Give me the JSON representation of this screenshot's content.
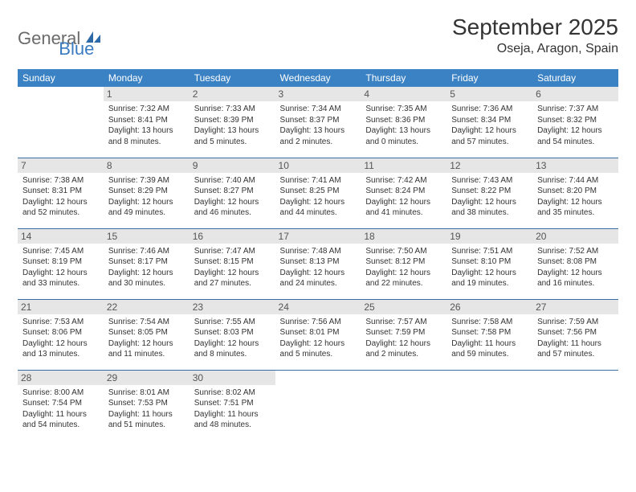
{
  "logo": {
    "text1": "General",
    "text2": "Blue"
  },
  "title": "September 2025",
  "location": "Oseja, Aragon, Spain",
  "colors": {
    "header_bg": "#3b82c4",
    "header_text": "#ffffff",
    "daynum_bg": "#e6e6e6",
    "row_border": "#3b6fa3",
    "logo_gray": "#6b6b6b",
    "logo_blue": "#3b7bbf"
  },
  "typography": {
    "title_size": 28,
    "location_size": 16,
    "header_cell_size": 12,
    "daynum_size": 12,
    "info_size": 10
  },
  "day_headers": [
    "Sunday",
    "Monday",
    "Tuesday",
    "Wednesday",
    "Thursday",
    "Friday",
    "Saturday"
  ],
  "weeks": [
    [
      {
        "empty": true
      },
      {
        "num": "1",
        "sunrise": "7:32 AM",
        "sunset": "8:41 PM",
        "daylight": "13 hours and 8 minutes."
      },
      {
        "num": "2",
        "sunrise": "7:33 AM",
        "sunset": "8:39 PM",
        "daylight": "13 hours and 5 minutes."
      },
      {
        "num": "3",
        "sunrise": "7:34 AM",
        "sunset": "8:37 PM",
        "daylight": "13 hours and 2 minutes."
      },
      {
        "num": "4",
        "sunrise": "7:35 AM",
        "sunset": "8:36 PM",
        "daylight": "13 hours and 0 minutes."
      },
      {
        "num": "5",
        "sunrise": "7:36 AM",
        "sunset": "8:34 PM",
        "daylight": "12 hours and 57 minutes."
      },
      {
        "num": "6",
        "sunrise": "7:37 AM",
        "sunset": "8:32 PM",
        "daylight": "12 hours and 54 minutes."
      }
    ],
    [
      {
        "num": "7",
        "sunrise": "7:38 AM",
        "sunset": "8:31 PM",
        "daylight": "12 hours and 52 minutes."
      },
      {
        "num": "8",
        "sunrise": "7:39 AM",
        "sunset": "8:29 PM",
        "daylight": "12 hours and 49 minutes."
      },
      {
        "num": "9",
        "sunrise": "7:40 AM",
        "sunset": "8:27 PM",
        "daylight": "12 hours and 46 minutes."
      },
      {
        "num": "10",
        "sunrise": "7:41 AM",
        "sunset": "8:25 PM",
        "daylight": "12 hours and 44 minutes."
      },
      {
        "num": "11",
        "sunrise": "7:42 AM",
        "sunset": "8:24 PM",
        "daylight": "12 hours and 41 minutes."
      },
      {
        "num": "12",
        "sunrise": "7:43 AM",
        "sunset": "8:22 PM",
        "daylight": "12 hours and 38 minutes."
      },
      {
        "num": "13",
        "sunrise": "7:44 AM",
        "sunset": "8:20 PM",
        "daylight": "12 hours and 35 minutes."
      }
    ],
    [
      {
        "num": "14",
        "sunrise": "7:45 AM",
        "sunset": "8:19 PM",
        "daylight": "12 hours and 33 minutes."
      },
      {
        "num": "15",
        "sunrise": "7:46 AM",
        "sunset": "8:17 PM",
        "daylight": "12 hours and 30 minutes."
      },
      {
        "num": "16",
        "sunrise": "7:47 AM",
        "sunset": "8:15 PM",
        "daylight": "12 hours and 27 minutes."
      },
      {
        "num": "17",
        "sunrise": "7:48 AM",
        "sunset": "8:13 PM",
        "daylight": "12 hours and 24 minutes."
      },
      {
        "num": "18",
        "sunrise": "7:50 AM",
        "sunset": "8:12 PM",
        "daylight": "12 hours and 22 minutes."
      },
      {
        "num": "19",
        "sunrise": "7:51 AM",
        "sunset": "8:10 PM",
        "daylight": "12 hours and 19 minutes."
      },
      {
        "num": "20",
        "sunrise": "7:52 AM",
        "sunset": "8:08 PM",
        "daylight": "12 hours and 16 minutes."
      }
    ],
    [
      {
        "num": "21",
        "sunrise": "7:53 AM",
        "sunset": "8:06 PM",
        "daylight": "12 hours and 13 minutes."
      },
      {
        "num": "22",
        "sunrise": "7:54 AM",
        "sunset": "8:05 PM",
        "daylight": "12 hours and 11 minutes."
      },
      {
        "num": "23",
        "sunrise": "7:55 AM",
        "sunset": "8:03 PM",
        "daylight": "12 hours and 8 minutes."
      },
      {
        "num": "24",
        "sunrise": "7:56 AM",
        "sunset": "8:01 PM",
        "daylight": "12 hours and 5 minutes."
      },
      {
        "num": "25",
        "sunrise": "7:57 AM",
        "sunset": "7:59 PM",
        "daylight": "12 hours and 2 minutes."
      },
      {
        "num": "26",
        "sunrise": "7:58 AM",
        "sunset": "7:58 PM",
        "daylight": "11 hours and 59 minutes."
      },
      {
        "num": "27",
        "sunrise": "7:59 AM",
        "sunset": "7:56 PM",
        "daylight": "11 hours and 57 minutes."
      }
    ],
    [
      {
        "num": "28",
        "sunrise": "8:00 AM",
        "sunset": "7:54 PM",
        "daylight": "11 hours and 54 minutes."
      },
      {
        "num": "29",
        "sunrise": "8:01 AM",
        "sunset": "7:53 PM",
        "daylight": "11 hours and 51 minutes."
      },
      {
        "num": "30",
        "sunrise": "8:02 AM",
        "sunset": "7:51 PM",
        "daylight": "11 hours and 48 minutes."
      },
      {
        "empty": true
      },
      {
        "empty": true
      },
      {
        "empty": true
      },
      {
        "empty": true
      }
    ]
  ]
}
